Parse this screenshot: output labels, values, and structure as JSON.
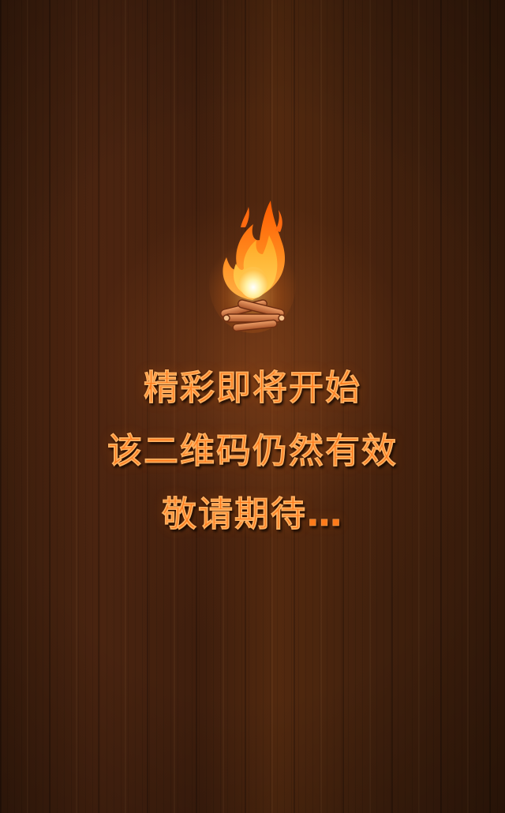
{
  "background": {
    "texture": "dark-wood-planks",
    "base_color": "#3b1d0c"
  },
  "campfire": {
    "icon": "campfire-icon",
    "flame_color": "#ff8a1e",
    "core_color": "#fff2a8",
    "log_color": "#d9814a"
  },
  "message": {
    "line1": "精彩即将开始",
    "line2": "该二维码仍然有效",
    "line3": "敬请期待…",
    "text_color": "#ff7a1a"
  }
}
